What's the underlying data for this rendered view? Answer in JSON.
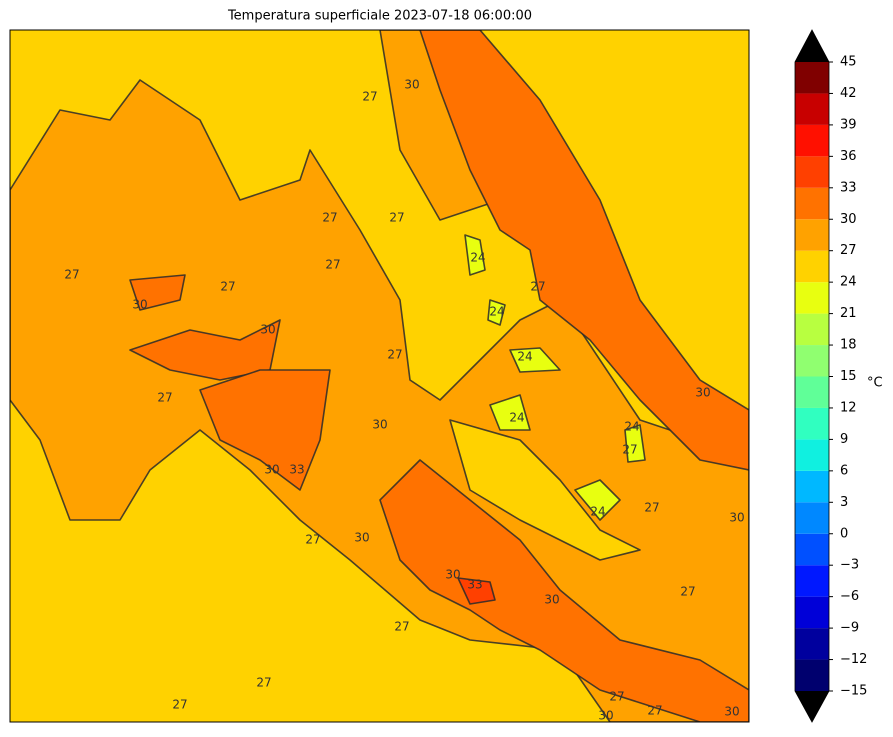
{
  "title": "Temperatura superficiale 2023-07-18 06:00:00",
  "map": {
    "contour_labels": [
      30,
      27,
      27,
      27,
      27,
      24,
      27,
      24,
      27,
      27,
      30,
      30,
      27,
      24,
      30,
      27,
      30,
      24,
      24,
      27,
      30,
      33,
      24,
      27,
      30,
      27,
      30,
      30,
      33,
      30,
      27,
      27,
      27,
      27,
      30,
      27,
      27,
      30
    ]
  },
  "colorbar": {
    "label": "°C",
    "ticks": [
      {
        "value": -15,
        "label": "−15"
      },
      {
        "value": -12,
        "label": "−12"
      },
      {
        "value": -9,
        "label": "−9"
      },
      {
        "value": -6,
        "label": "−6"
      },
      {
        "value": -3,
        "label": "−3"
      },
      0,
      3,
      6,
      9,
      12,
      15,
      18,
      21,
      24,
      27,
      30,
      33,
      36,
      39,
      42,
      45
    ],
    "colors": [
      "#00006e",
      "#00009e",
      "#0000d8",
      "#0018ff",
      "#0050ff",
      "#0088ff",
      "#00b8ff",
      "#10f0e0",
      "#30ffc0",
      "#60ff98",
      "#90ff70",
      "#b8ff40",
      "#e8ff10",
      "#ffd200",
      "#ffa200",
      "#ff7200",
      "#ff4000",
      "#ff1000",
      "#c80000",
      "#800000"
    ],
    "extend_colors": [
      "#000000",
      "#000000"
    ]
  }
}
